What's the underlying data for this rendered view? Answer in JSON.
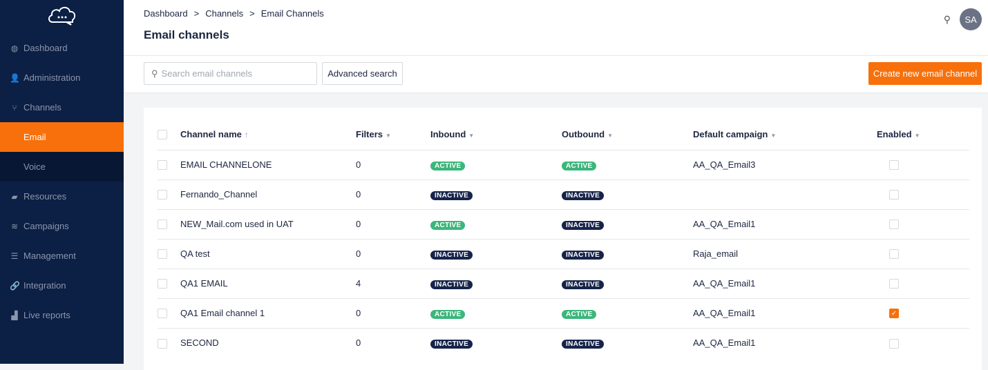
{
  "sidebar": {
    "items": [
      {
        "label": "Dashboard",
        "icon": "dashboard-icon",
        "glyph": "◍"
      },
      {
        "label": "Administration",
        "icon": "user-icon",
        "glyph": "👤"
      },
      {
        "label": "Channels",
        "icon": "branch-icon",
        "glyph": "⑂"
      },
      {
        "label": "Email",
        "sub": true,
        "active": true
      },
      {
        "label": "Voice",
        "sub": true
      },
      {
        "label": "Resources",
        "icon": "folder-icon",
        "glyph": "▰"
      },
      {
        "label": "Campaigns",
        "icon": "layers-icon",
        "glyph": "≋"
      },
      {
        "label": "Management",
        "icon": "list-icon",
        "glyph": "☰"
      },
      {
        "label": "Integration",
        "icon": "link-icon",
        "glyph": "🔗"
      },
      {
        "label": "Live reports",
        "icon": "bar-chart-icon",
        "glyph": "▟"
      }
    ]
  },
  "header": {
    "breadcrumbs": [
      "Dashboard",
      "Channels",
      "Email Channels"
    ],
    "title": "Email channels",
    "avatar": "SA"
  },
  "toolbar": {
    "search_placeholder": "Search email channels",
    "advanced": "Advanced search",
    "create": "Create new email channel"
  },
  "table": {
    "columns": [
      "Channel name",
      "Filters",
      "Inbound",
      "Outbound",
      "Default campaign",
      "Enabled"
    ],
    "rows": [
      [
        "EMAIL CHANNELONE",
        "0",
        "ACTIVE",
        "ACTIVE",
        "AA_QA_Email3",
        false
      ],
      [
        "Fernando_Channel",
        "0",
        "INACTIVE",
        "INACTIVE",
        "",
        false
      ],
      [
        "NEW_Mail.com used in UAT",
        "0",
        "ACTIVE",
        "INACTIVE",
        "AA_QA_Email1",
        false
      ],
      [
        "QA test",
        "0",
        "INACTIVE",
        "INACTIVE",
        "Raja_email",
        false
      ],
      [
        "QA1 EMAIL",
        "4",
        "INACTIVE",
        "INACTIVE",
        "AA_QA_Email1",
        false
      ],
      [
        "QA1 Email channel 1",
        "0",
        "ACTIVE",
        "ACTIVE",
        "AA_QA_Email1",
        true
      ],
      [
        "SECOND",
        "0",
        "INACTIVE",
        "INACTIVE",
        "AA_QA_Email1",
        false
      ]
    ]
  },
  "colors": {
    "sidebar": "#0c1f45",
    "accent": "#f7700b",
    "active": "#3cb67b",
    "inactive": "#16244a"
  }
}
